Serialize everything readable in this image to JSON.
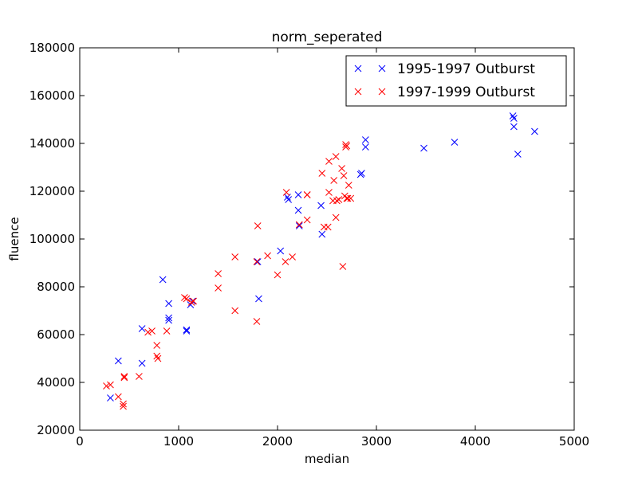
{
  "chart_data": {
    "type": "scatter",
    "title": "norm_seperated",
    "xlabel": "median",
    "ylabel": "fluence",
    "xlim": [
      0,
      5000
    ],
    "ylim": [
      20000,
      180000
    ],
    "xticks": [
      0,
      1000,
      2000,
      3000,
      4000,
      5000
    ],
    "yticks": [
      20000,
      40000,
      60000,
      80000,
      100000,
      120000,
      140000,
      160000,
      180000
    ],
    "grid": false,
    "legend_position": "top-right",
    "marker": "x",
    "series": [
      {
        "name": "1995-1997 Outburst",
        "color": "#0000ff",
        "points": [
          [
            310,
            33500
          ],
          [
            390,
            49000
          ],
          [
            630,
            62500
          ],
          [
            630,
            48000
          ],
          [
            840,
            83000
          ],
          [
            900,
            73000
          ],
          [
            900,
            67000
          ],
          [
            900,
            66000
          ],
          [
            1080,
            62000
          ],
          [
            1080,
            61500
          ],
          [
            1120,
            72500
          ],
          [
            1140,
            74000
          ],
          [
            1800,
            90500
          ],
          [
            1810,
            75000
          ],
          [
            2030,
            95000
          ],
          [
            2100,
            117500
          ],
          [
            2110,
            116500
          ],
          [
            2210,
            118500
          ],
          [
            2210,
            112000
          ],
          [
            2220,
            105500
          ],
          [
            2440,
            114000
          ],
          [
            2450,
            102000
          ],
          [
            2840,
            127000
          ],
          [
            2850,
            127500
          ],
          [
            2890,
            141500
          ],
          [
            2890,
            138500
          ],
          [
            3480,
            138000
          ],
          [
            3790,
            140500
          ],
          [
            4380,
            151500
          ],
          [
            4390,
            150500
          ],
          [
            4390,
            147000
          ],
          [
            4430,
            135500
          ],
          [
            4600,
            145000
          ]
        ]
      },
      {
        "name": "1997-1999 Outburst",
        "color": "#ff0000",
        "points": [
          [
            270,
            38500
          ],
          [
            310,
            39000
          ],
          [
            390,
            34000
          ],
          [
            440,
            30000
          ],
          [
            440,
            31000
          ],
          [
            450,
            42500
          ],
          [
            450,
            42000
          ],
          [
            600,
            42500
          ],
          [
            690,
            61000
          ],
          [
            730,
            61500
          ],
          [
            780,
            55500
          ],
          [
            780,
            51000
          ],
          [
            790,
            50000
          ],
          [
            880,
            61500
          ],
          [
            1060,
            75500
          ],
          [
            1080,
            75000
          ],
          [
            1130,
            73500
          ],
          [
            1150,
            74000
          ],
          [
            1400,
            85500
          ],
          [
            1400,
            79500
          ],
          [
            1570,
            92500
          ],
          [
            1570,
            70000
          ],
          [
            1790,
            90500
          ],
          [
            1790,
            65500
          ],
          [
            1800,
            105500
          ],
          [
            1900,
            93000
          ],
          [
            2000,
            85000
          ],
          [
            2080,
            90500
          ],
          [
            2090,
            119500
          ],
          [
            2150,
            92500
          ],
          [
            2220,
            106000
          ],
          [
            2300,
            118500
          ],
          [
            2300,
            118500
          ],
          [
            2300,
            108000
          ],
          [
            2450,
            127500
          ],
          [
            2470,
            105000
          ],
          [
            2510,
            105000
          ],
          [
            2520,
            132500
          ],
          [
            2520,
            119500
          ],
          [
            2560,
            116000
          ],
          [
            2570,
            124500
          ],
          [
            2590,
            109000
          ],
          [
            2590,
            134500
          ],
          [
            2600,
            116000
          ],
          [
            2620,
            116500
          ],
          [
            2650,
            129500
          ],
          [
            2660,
            88500
          ],
          [
            2670,
            126500
          ],
          [
            2690,
            139500
          ],
          [
            2690,
            138500
          ],
          [
            2700,
            139000
          ],
          [
            2700,
            117000
          ],
          [
            2710,
            117000
          ],
          [
            2720,
            122500
          ],
          [
            2740,
            117000
          ],
          [
            2680,
            118000
          ]
        ]
      }
    ]
  }
}
